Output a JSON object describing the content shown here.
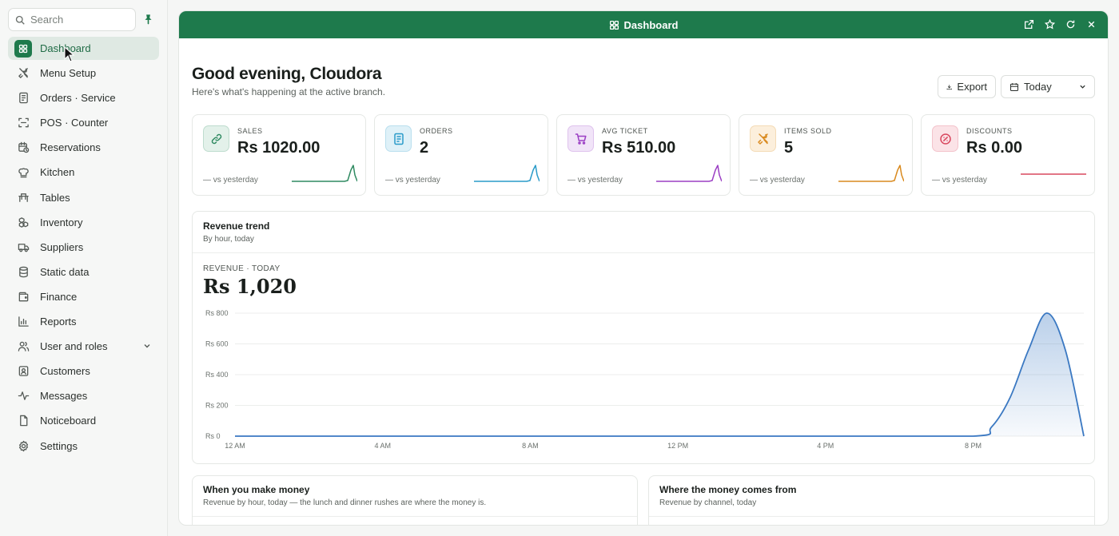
{
  "sidebar": {
    "search_placeholder": "Search",
    "items": [
      {
        "label": "Dashboard",
        "icon": "grid-icon",
        "active": true
      },
      {
        "label": "Menu Setup",
        "icon": "utensils-icon"
      },
      {
        "label": "Orders · Service",
        "icon": "receipt-icon"
      },
      {
        "label": "POS · Counter",
        "icon": "scan-icon"
      },
      {
        "label": "Reservations",
        "icon": "calendar-clock-icon"
      },
      {
        "label": "Kitchen",
        "icon": "chef-hat-icon"
      },
      {
        "label": "Tables",
        "icon": "table-icon"
      },
      {
        "label": "Inventory",
        "icon": "boxes-icon"
      },
      {
        "label": "Suppliers",
        "icon": "truck-icon"
      },
      {
        "label": "Static data",
        "icon": "database-icon"
      },
      {
        "label": "Finance",
        "icon": "wallet-icon"
      },
      {
        "label": "Reports",
        "icon": "bar-chart-icon"
      },
      {
        "label": "User and roles",
        "icon": "users-icon",
        "expandable": true
      },
      {
        "label": "Customers",
        "icon": "contact-icon"
      },
      {
        "label": "Messages",
        "icon": "activity-icon"
      },
      {
        "label": "Noticeboard",
        "icon": "file-icon"
      },
      {
        "label": "Settings",
        "icon": "gear-icon"
      }
    ]
  },
  "window": {
    "title": "Dashboard"
  },
  "header": {
    "greeting": "Good evening, Cloudora",
    "subtitle": "Here's what's happening at the active branch.",
    "export_label": "Export",
    "range_label": "Today"
  },
  "kpis": [
    {
      "label": "SALES",
      "value": "Rs 1020.00",
      "compare": "— vs yesterday",
      "color": "#2f8a61",
      "bg": "#e3f1ea",
      "icon": "link-icon"
    },
    {
      "label": "ORDERS",
      "value": "2",
      "compare": "— vs yesterday",
      "color": "#2a9bc9",
      "bg": "#dff1f8",
      "icon": "receipt-icon"
    },
    {
      "label": "AVG TICKET",
      "value": "Rs 510.00",
      "compare": "— vs yesterday",
      "color": "#9b3fc4",
      "bg": "#f1e4f8",
      "icon": "cart-icon"
    },
    {
      "label": "ITEMS SOLD",
      "value": "5",
      "compare": "— vs yesterday",
      "color": "#d98a1f",
      "bg": "#fcefdc",
      "icon": "utensils-icon"
    },
    {
      "label": "DISCOUNTS",
      "value": "Rs 0.00",
      "compare": "— vs yesterday",
      "color": "#d9485f",
      "bg": "#fbe3e7",
      "icon": "percent-badge-icon"
    }
  ],
  "trend": {
    "title": "Revenue trend",
    "subtitle": "By hour, today",
    "overline": "REVENUE · TODAY",
    "total": "Rs 1,020"
  },
  "chart_data": {
    "type": "area",
    "title": "Revenue trend",
    "x_ticks": [
      "12 AM",
      "4 AM",
      "8 AM",
      "12 PM",
      "4 PM",
      "8 PM"
    ],
    "y_ticks": [
      "Rs 0",
      "Rs 200",
      "Rs 400",
      "Rs 600",
      "Rs 800"
    ],
    "ylim": [
      0,
      800
    ],
    "x": [
      0,
      4,
      8,
      12,
      16,
      20,
      20.5,
      21,
      21.5,
      22,
      22.5,
      23
    ],
    "values": [
      0,
      0,
      0,
      0,
      0,
      0,
      60,
      250,
      560,
      800,
      560,
      0
    ],
    "xlim": [
      0,
      23
    ],
    "color": "#3a78c2",
    "grid": true
  },
  "bottom_cards": [
    {
      "title": "When you make money",
      "subtitle": "Revenue by hour, today — the lunch and dinner rushes are where the money is."
    },
    {
      "title": "Where the money comes from",
      "subtitle": "Revenue by channel, today"
    }
  ]
}
